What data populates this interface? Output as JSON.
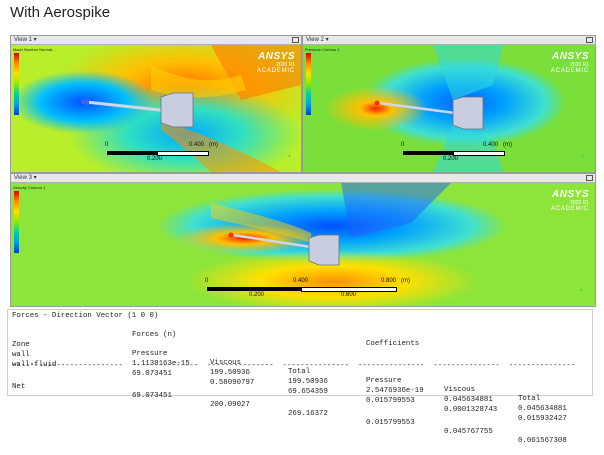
{
  "title": "With Aerospike",
  "views": [
    {
      "tab": "View 1",
      "brand": "ANSYS",
      "version": "2020 R1",
      "edition": "ACADEMIC",
      "legend_title": "Mach Number\nNormal...",
      "scale_0": "0",
      "scale_mid": "0.200",
      "scale_end": "0.400",
      "unit": "(m)"
    },
    {
      "tab": "View 2",
      "brand": "ANSYS",
      "version": "2020 R1",
      "edition": "ACADEMIC",
      "legend_title": "Pressure\nContour 1",
      "scale_0": "0",
      "scale_mid": "0.200",
      "scale_end": "0.400",
      "unit": "(m)"
    },
    {
      "tab": "View 3",
      "brand": "ANSYS",
      "version": "2020 R1",
      "edition": "ACADEMIC",
      "legend_title": "Velocity\nContour 1",
      "scale_0": "0",
      "scale_q": "0.200",
      "scale_mid": "0.400",
      "scale_3q": "0.600",
      "scale_end": "0.800",
      "unit": "(m)"
    }
  ],
  "forces": {
    "header": "Forces - Direction Vector (1 0 0)",
    "group_forces": "Forces (n)",
    "group_coeff": "Coefficients",
    "columns": [
      "Zone",
      "Pressure",
      "Viscous",
      "Total",
      "Pressure",
      "Viscous",
      "Total"
    ],
    "rows": [
      [
        "wall",
        "1.1138163e-15",
        "199.50936",
        "199.50936",
        "2.5476936e-19",
        "0.045634881",
        "0.045634881"
      ],
      [
        "wall-fluid",
        "69.073451",
        "0.58090797",
        "69.654359",
        "0.015799553",
        "0.0001328743",
        "0.015932427"
      ]
    ],
    "separator": "-------------------------  ---------------  ---------------  ---------------  ---------------  ---------------  ---------------",
    "net": [
      "Net",
      "69.073451",
      "200.09027",
      "269.16372",
      "0.015799553",
      "0.045767755",
      "0.061567308"
    ]
  }
}
